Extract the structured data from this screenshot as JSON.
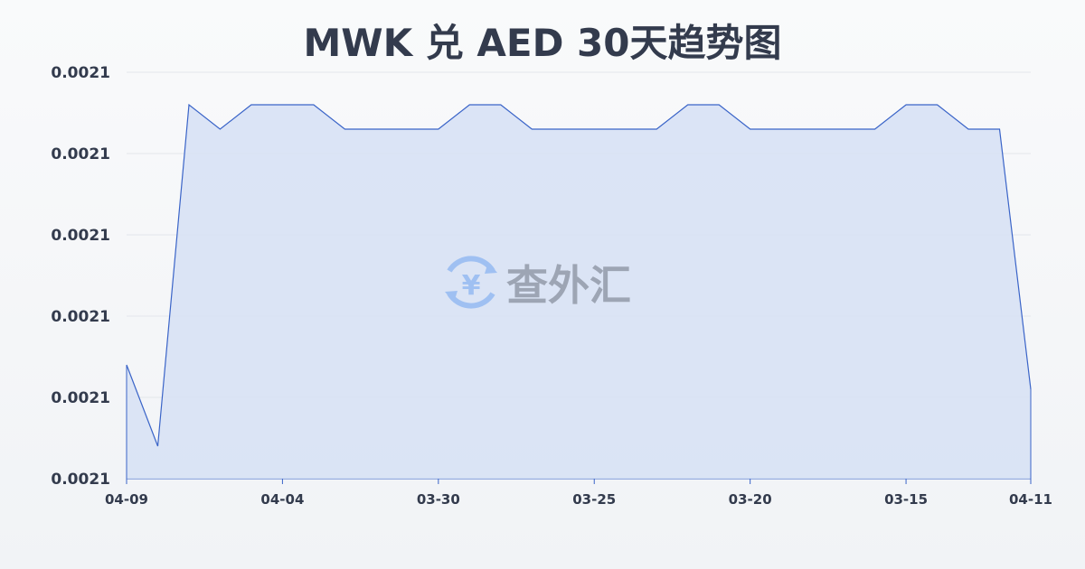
{
  "chart_data": {
    "type": "area",
    "title": "MWK 兑 AED 30天趋势图",
    "xlabel": "",
    "ylabel": "",
    "ylim": [
      0.002105,
      0.00211
    ],
    "y_tick_values": [
      0.002105,
      0.002106,
      0.002107,
      0.002108,
      0.002109,
      0.00211
    ],
    "y_tick_labels": [
      "0.0021",
      "0.0021",
      "0.0021",
      "0.0021",
      "0.0021",
      "0.0021"
    ],
    "x_tick_labels": [
      "04-09",
      "04-04",
      "03-30",
      "03-25",
      "03-20",
      "03-15",
      "04-11"
    ],
    "x_tick_indices": [
      0,
      5,
      10,
      15,
      20,
      25,
      29
    ],
    "values": [
      0.0021064,
      0.0021054,
      0.0021096,
      0.0021093,
      0.0021096,
      0.0021096,
      0.0021096,
      0.0021093,
      0.0021093,
      0.0021093,
      0.0021093,
      0.0021096,
      0.0021096,
      0.0021093,
      0.0021093,
      0.0021093,
      0.0021093,
      0.0021093,
      0.0021096,
      0.0021096,
      0.0021093,
      0.0021093,
      0.0021093,
      0.0021093,
      0.0021093,
      0.0021096,
      0.0021096,
      0.0021093,
      0.0021093,
      0.0021061
    ],
    "grid": true,
    "colors": {
      "line": "#3a64c8",
      "fill": "#d6e1f5"
    }
  },
  "watermark": {
    "text": "查外汇",
    "icon": "yen-exchange-icon"
  }
}
